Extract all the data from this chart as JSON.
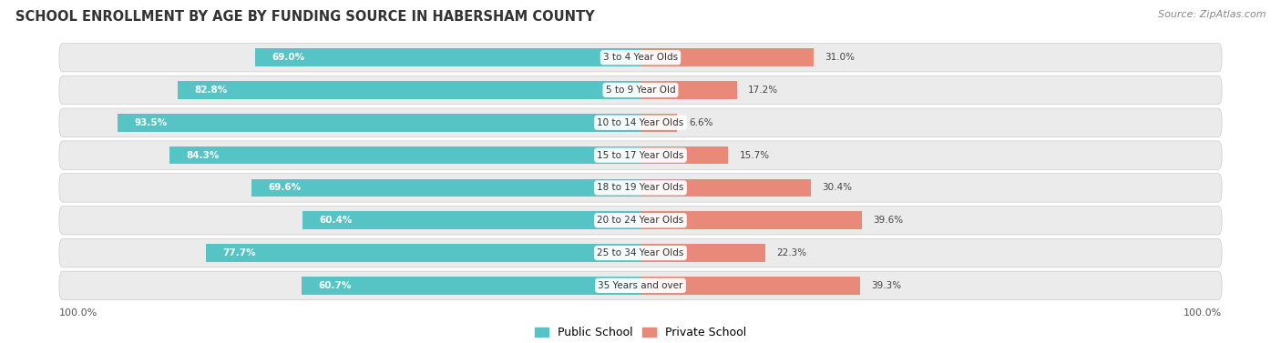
{
  "title": "SCHOOL ENROLLMENT BY AGE BY FUNDING SOURCE IN HABERSHAM COUNTY",
  "source": "Source: ZipAtlas.com",
  "categories": [
    "3 to 4 Year Olds",
    "5 to 9 Year Old",
    "10 to 14 Year Olds",
    "15 to 17 Year Olds",
    "18 to 19 Year Olds",
    "20 to 24 Year Olds",
    "25 to 34 Year Olds",
    "35 Years and over"
  ],
  "public_values": [
    69.0,
    82.8,
    93.5,
    84.3,
    69.6,
    60.4,
    77.7,
    60.7
  ],
  "private_values": [
    31.0,
    17.2,
    6.6,
    15.7,
    30.4,
    39.6,
    22.3,
    39.3
  ],
  "public_color": "#56C4C4",
  "private_color": "#E8897A",
  "row_bg_color": "#EBEBEB",
  "axis_label_left": "100.0%",
  "axis_label_right": "100.0%",
  "title_fontsize": 10.5,
  "bar_label_fontsize": 7.5,
  "category_fontsize": 7.5,
  "legend_fontsize": 9
}
